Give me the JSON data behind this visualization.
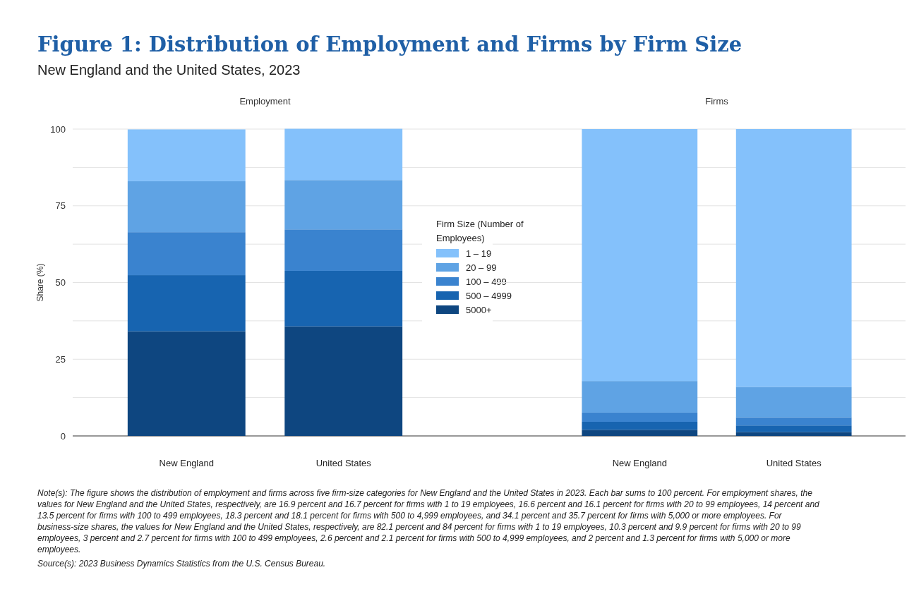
{
  "chart_data": [
    {
      "type": "bar",
      "stacked": true,
      "title": "Figure 1: Distribution of Employment and Firms by Firm Size",
      "subtitle": "New England and the United States, 2023",
      "xlabel": "Employment",
      "ylabel": "Share (%)",
      "legend_title": "Firm Size (Number of Employees)",
      "legend": "right",
      "grid": "y",
      "categories": [
        "New England",
        "United States"
      ],
      "ylim": [
        0,
        100
      ],
      "yticks": [
        0,
        {
          "value": 12.5,
          "label": null
        },
        25,
        {
          "value": 37.5,
          "label": null
        },
        50,
        {
          "value": 62.5,
          "label": null
        },
        75,
        {
          "value": 87.5,
          "label": null
        },
        100
      ],
      "series": [
        {
          "name": "5000+",
          "color": "#0e4680",
          "values": [
            34.1,
            35.7
          ]
        },
        {
          "name": "500 – 4999",
          "color": "#1764b0",
          "values": [
            18.3,
            18.1
          ]
        },
        {
          "name": "100 – 499",
          "color": "#3a83cf",
          "values": [
            14,
            13.5
          ]
        },
        {
          "name": "20 – 99",
          "color": "#5fa3e4",
          "values": [
            16.6,
            16.1
          ]
        },
        {
          "name": "1 – 19",
          "color": "#84c1fb",
          "values": [
            16.9,
            16.7
          ]
        }
      ],
      "annotations": [
        "Note(s): The figure shows the distribution of employment and firms across five firm-size categories for New England and the United States in 2023. Each bar sums to 100 percent. For employment shares, the values for New England and the United States, respectively, are 16.9 percent and 16.7 percent for firms with 1 to 19 employees, 16.6 percent and 16.1 percent for firms with 20 to 99 employees, 14 percent and 13.5 percent for firms with 100 to 499 employees, 18.3 percent and 18.1 percent for firms with 500 to 4,999 employees, and 34.1 percent and 35.7 percent for firms with 5,000 or more employees. For business-size shares, the values for New England and the United States, respectively, are 82.1 percent and 84 percent for firms with 1 to 19 employees, 10.3 percent and 9.9 percent for firms with 20 to 99 employees, 3 percent and 2.7 percent for firms with 100 to 499 employees, 2.6 percent and 2.1 percent for firms with 500 to 4,999 employees, and 2 percent and 1.3 percent for firms with 5,000 or more employees.",
        "Source(s): 2023 Business Dynamics Statistics from the U.S. Census Bureau."
      ]
    },
    {
      "type": "bar",
      "stacked": true,
      "xlabel": "Firms",
      "grid": "y",
      "tick_labels": "x",
      "categories": [
        "New England",
        "United States"
      ],
      "ylim": [
        0,
        100
      ],
      "yticks": [
        0,
        {
          "value": 12.5,
          "label": null
        },
        25,
        {
          "value": 37.5,
          "label": null
        },
        50,
        {
          "value": 62.5,
          "label": null
        },
        75,
        {
          "value": 87.5,
          "label": null
        },
        100
      ],
      "series": [
        {
          "color": "#0e4680",
          "values": [
            2,
            1.3
          ]
        },
        {
          "color": "#1764b0",
          "values": [
            2.6,
            2.1
          ]
        },
        {
          "color": "#3a83cf",
          "values": [
            3,
            2.7
          ]
        },
        {
          "color": "#5fa3e4",
          "values": [
            10.3,
            9.9
          ]
        },
        {
          "color": "#84c1fb",
          "values": [
            82.1,
            84
          ]
        }
      ]
    }
  ]
}
